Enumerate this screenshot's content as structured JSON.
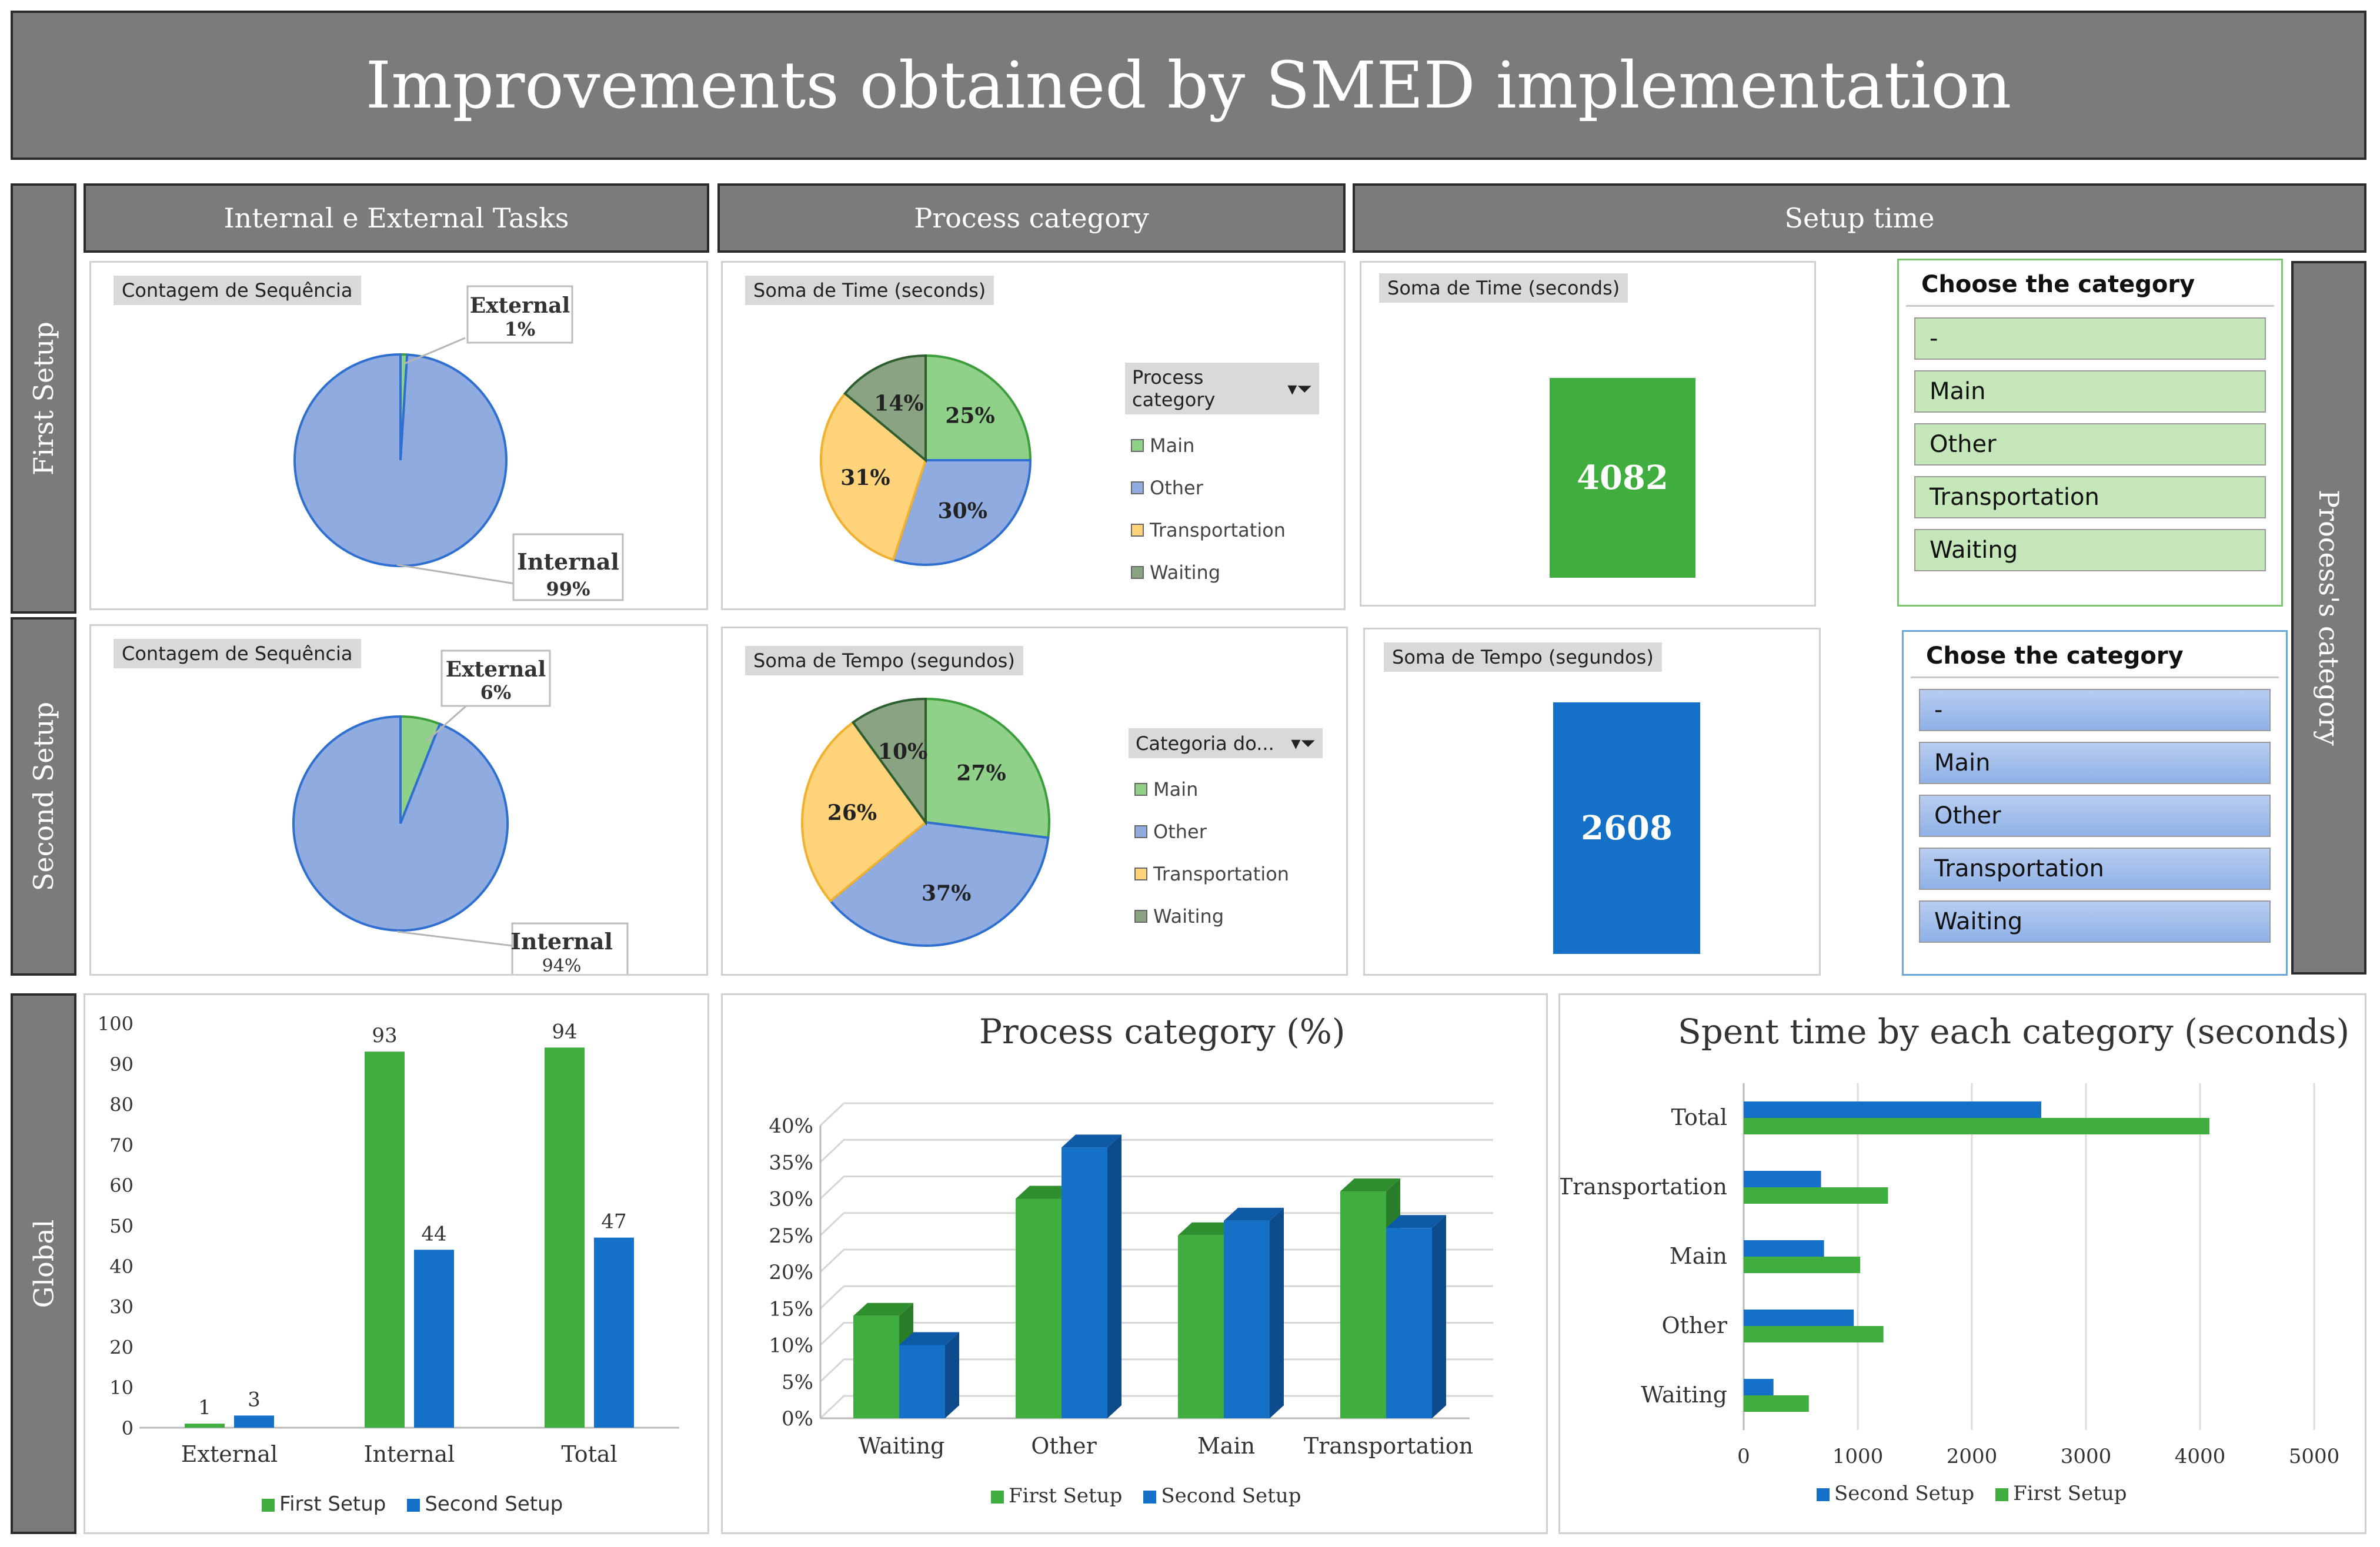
{
  "title": "Improvements obtained by SMED implementation",
  "column_headers": [
    "Internal e External Tasks",
    "Process category",
    "Setup time"
  ],
  "row_headers": [
    "First Setup",
    "Second Setup",
    "Global"
  ],
  "right_label": "Process's category",
  "colors": {
    "green": "#3fae3f",
    "blue": "#1570c7",
    "pie_light_blue": "#8fabe0",
    "pie_green": "#90d18a",
    "pie_yellow": "#ffd37a",
    "pie_dark_green": "#8aa483"
  },
  "first_setup": {
    "tasks_tag": "Contagem de Sequência",
    "external_label": "External",
    "external_pct": "1%",
    "internal_label": "Internal",
    "internal_pct": "99%",
    "category_tag": "Soma de Time (seconds)",
    "legend_header": "Process category",
    "setup_tag": "Soma de Time (seconds)",
    "setup_value": "4082",
    "slicer_title": "Choose the category"
  },
  "second_setup": {
    "tasks_tag": "Contagem de Sequência",
    "external_label": "External",
    "external_pct": "6%",
    "internal_label": "Internal",
    "internal_pct": "94%",
    "category_tag": "Soma de Tempo (segundos)",
    "legend_header": "Categoria do...",
    "setup_tag": "Soma de Tempo (segundos)",
    "setup_value": "2608",
    "slicer_title": "Chose the category"
  },
  "slicer_options": [
    "-",
    "Main",
    "Other",
    "Transportation",
    "Waiting"
  ],
  "legend_items": [
    "Main",
    "Other",
    "Transportation",
    "Waiting"
  ],
  "chart_data": [
    {
      "type": "pie",
      "slices": [
        {
          "label": "External",
          "value": 1
        },
        {
          "label": "Internal",
          "value": 99
        }
      ]
    },
    {
      "type": "pie",
      "slices": [
        {
          "label": "Main",
          "value": 25
        },
        {
          "label": "Other",
          "value": 30
        },
        {
          "label": "Transportation",
          "value": 31
        },
        {
          "label": "Waiting",
          "value": 14
        }
      ]
    },
    {
      "type": "pie",
      "slices": [
        {
          "label": "External",
          "value": 6
        },
        {
          "label": "Internal",
          "value": 94
        }
      ]
    },
    {
      "type": "pie",
      "slices": [
        {
          "label": "Main",
          "value": 27
        },
        {
          "label": "Other",
          "value": 37
        },
        {
          "label": "Transportation",
          "value": 26
        },
        {
          "label": "Waiting",
          "value": 10
        }
      ]
    },
    {
      "type": "bar",
      "categories": [
        "External",
        "Internal",
        "Total"
      ],
      "series": [
        {
          "name": "First Setup",
          "values": [
            1,
            93,
            94
          ]
        },
        {
          "name": "Second Setup",
          "values": [
            3,
            44,
            47
          ]
        }
      ],
      "ylim": [
        0,
        100
      ],
      "yticks": [
        0,
        10,
        20,
        30,
        40,
        50,
        60,
        70,
        80,
        90,
        100
      ],
      "legend": "bottom"
    },
    {
      "type": "bar",
      "title": "Process category (%)",
      "categories": [
        "Waiting",
        "Other",
        "Main",
        "Transportation"
      ],
      "series": [
        {
          "name": "First Setup",
          "values": [
            14,
            30,
            25,
            31
          ]
        },
        {
          "name": "Second Setup",
          "values": [
            10,
            37,
            27,
            26
          ]
        }
      ],
      "ylim": [
        0,
        40
      ],
      "yticks": [
        "0%",
        "5%",
        "10%",
        "15%",
        "20%",
        "25%",
        "30%",
        "35%",
        "40%"
      ],
      "legend": "bottom"
    },
    {
      "type": "bar",
      "orientation": "horizontal",
      "title": "Spent time by each category (seconds)",
      "categories": [
        "Total",
        "Transportation",
        "Main",
        "Other",
        "Waiting"
      ],
      "series": [
        {
          "name": "Second Setup",
          "values": [
            2608,
            678,
            704,
            965,
            261
          ]
        },
        {
          "name": "First Setup",
          "values": [
            4082,
            1265,
            1021,
            1225,
            571
          ]
        }
      ],
      "xlim": [
        0,
        5000
      ],
      "xticks": [
        0,
        1000,
        2000,
        3000,
        4000,
        5000
      ],
      "legend": "bottom"
    }
  ]
}
